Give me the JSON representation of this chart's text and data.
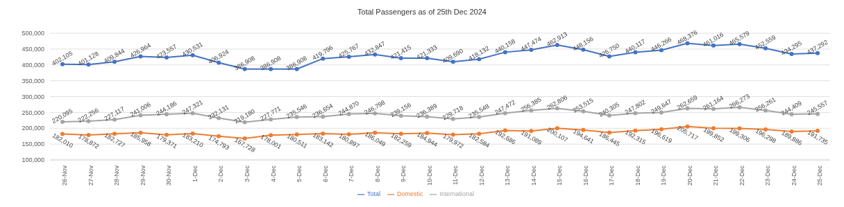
{
  "chart_data": {
    "type": "line",
    "title": "Total Passengers as of 25th Dec 2024",
    "categories": [
      "26-Nov",
      "27-Nov",
      "28-Nov",
      "29-Nov",
      "30-Nov",
      "1-Dec",
      "2-Dec",
      "3-Dec",
      "4-Dec",
      "5-Dec",
      "6-Dec",
      "7-Dec",
      "8-Dec",
      "9-Dec",
      "10-Dec",
      "11-Dec",
      "12-Dec",
      "13-Dec",
      "14-Dec",
      "15-Dec",
      "16-Dec",
      "17-Dec",
      "18-Dec",
      "19-Dec",
      "20-Dec",
      "21-Dec",
      "22-Dec",
      "23-Dec",
      "24-Dec",
      "25-Dec"
    ],
    "series": [
      {
        "name": "Total",
        "color": "#4472c4",
        "values": [
          402105,
          401128,
          409844,
          426964,
          423557,
          430531,
          406924,
          386908,
          386908,
          386908,
          419796,
          425767,
          432847,
          421415,
          421333,
          409690,
          418132,
          440158,
          447474,
          462913,
          448156,
          426750,
          440117,
          446266,
          468376,
          461016,
          465579,
          452559,
          434295,
          437292
        ],
        "value_labels": [
          "402,105",
          "401,128",
          "409,844",
          "426,964",
          "423,557",
          "430,531",
          "406,924",
          "386,908",
          "386,908",
          "386,908",
          "419,796",
          "425,767",
          "432,847",
          "421,415",
          "421,333",
          "409,690",
          "418,132",
          "440,158",
          "447,474",
          "462,913",
          "448,156",
          "426,750",
          "440,117",
          "446,266",
          "468,376",
          "461,016",
          "465,579",
          "452,559",
          "434,295",
          "437,292"
        ]
      },
      {
        "name": "Domestic",
        "color": "#ed7d31",
        "values": [
          182010,
          178872,
          182727,
          185958,
          179371,
          183210,
          174793,
          167728,
          178001,
          180511,
          183142,
          180897,
          186049,
          182259,
          184944,
          179972,
          182584,
          192686,
          191089,
          200107,
          194641,
          186445,
          192315,
          196619,
          205717,
          199852,
          199306,
          196298,
          189886,
          191735
        ],
        "value_labels": [
          "182,010",
          "178,872",
          "182,727",
          "185,958",
          "179,371",
          "183,210",
          "174,793",
          "167,728",
          "178,001",
          "180,511",
          "183,142",
          "180,897",
          "186,049",
          "182,259",
          "184,944",
          "179,972",
          "182,584",
          "192,686",
          "191,089",
          "200,107",
          "194,641",
          "186,445",
          "192,315",
          "196,619",
          "205,717",
          "199,852",
          "199,306",
          "196,298",
          "189,886",
          "191,735"
        ]
      },
      {
        "name": "International",
        "color": "#a5a5a5",
        "values": [
          220095,
          222256,
          227117,
          241006,
          244186,
          247321,
          232131,
          219180,
          227771,
          235546,
          236654,
          244870,
          246798,
          239156,
          236389,
          229718,
          235548,
          247472,
          256385,
          262806,
          253515,
          240305,
          247802,
          249647,
          262659,
          261164,
          266273,
          256261,
          244409,
          245557
        ],
        "value_labels": [
          "220,095",
          "222,256",
          "227,117",
          "241,006",
          "244,186",
          "247,321",
          "232,131",
          "219,180",
          "227,771",
          "235,546",
          "236,654",
          "244,870",
          "246,798",
          "239,156",
          "236,389",
          "229,718",
          "235,548",
          "247,472",
          "256,385",
          "262,806",
          "253,515",
          "240,305",
          "247,802",
          "249,647",
          "262,659",
          "261,164",
          "266,273",
          "256,261",
          "244,409",
          "245,557"
        ]
      }
    ],
    "ylim": [
      100000,
      500000
    ],
    "yticks": [
      {
        "value": 100000,
        "label": "100,000"
      },
      {
        "value": 150000,
        "label": "150,000"
      },
      {
        "value": 200000,
        "label": "200,000"
      },
      {
        "value": 250000,
        "label": "250,000"
      },
      {
        "value": 300000,
        "label": "300,000"
      },
      {
        "value": 350000,
        "label": "350,000"
      },
      {
        "value": 400000,
        "label": "400,000"
      },
      {
        "value": 450000,
        "label": "450,000"
      },
      {
        "value": 500000,
        "label": "500,000"
      }
    ],
    "grid": "y",
    "legend": "bottom",
    "marker": "circle",
    "line_style": "solid"
  }
}
